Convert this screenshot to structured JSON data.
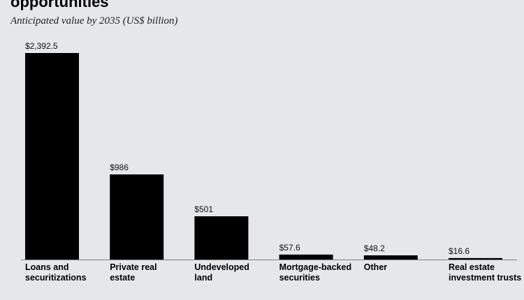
{
  "chart_data": {
    "type": "bar",
    "title": "opportunities",
    "subtitle": "Anticipated value by 2035 (US$ billion)",
    "categories": [
      [
        "Loans and",
        "securitizations"
      ],
      [
        "Private real",
        "estate"
      ],
      [
        "Undeveloped",
        "land"
      ],
      [
        "Mortgage-backed",
        "securities"
      ],
      [
        "Other"
      ],
      [
        "Real estate",
        "investment trusts"
      ]
    ],
    "values": [
      2392.5,
      986,
      501,
      57.6,
      48.2,
      16.6
    ],
    "value_labels": [
      "$2,392.5",
      "$986",
      "$501",
      "$57.6",
      "$48.2",
      "$16.6"
    ],
    "ylim": [
      0,
      2392.5
    ],
    "grid": false,
    "colors": {
      "bar": "#000000",
      "baseline": "#7f7f7f",
      "background": "#e6e7e9"
    }
  }
}
